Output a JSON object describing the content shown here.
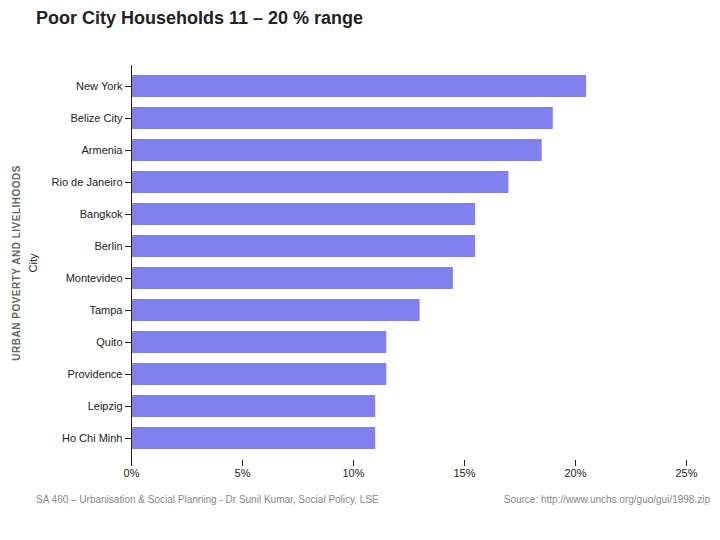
{
  "chart_data": {
    "type": "bar",
    "orientation": "horizontal",
    "title": "Poor City Households 11 – 20 % range",
    "ylabel": "City",
    "categories": [
      "New York",
      "Belize City",
      "Armenia",
      "Rio de Janeiro",
      "Bangkok",
      "Berlin",
      "Montevideo",
      "Tampa",
      "Quito",
      "Providence",
      "Leipzig",
      "Ho Chi Minh"
    ],
    "values": [
      20.5,
      19.0,
      18.5,
      17.0,
      15.5,
      15.5,
      14.5,
      13.0,
      11.5,
      11.5,
      11.0,
      11.0
    ],
    "color": "#8080ee",
    "xlim": [
      0,
      25
    ],
    "xticks": [
      {
        "value": 0,
        "label": "0%"
      },
      {
        "value": 5,
        "label": "5%"
      },
      {
        "value": 10,
        "label": "10%"
      },
      {
        "value": 15,
        "label": "15%"
      },
      {
        "value": 20,
        "label": "20%"
      },
      {
        "value": 25,
        "label": "25%"
      }
    ],
    "grid": false,
    "annotations": [
      "URBAN POVERTY AND LIVELIHOODS",
      "SA 460 – Urbanisation & Social Planning - Dr Sunil Kumar, Social Policy, LSE",
      "Source:  http://www.unchs.org/guo/gui/1998.zip"
    ]
  }
}
